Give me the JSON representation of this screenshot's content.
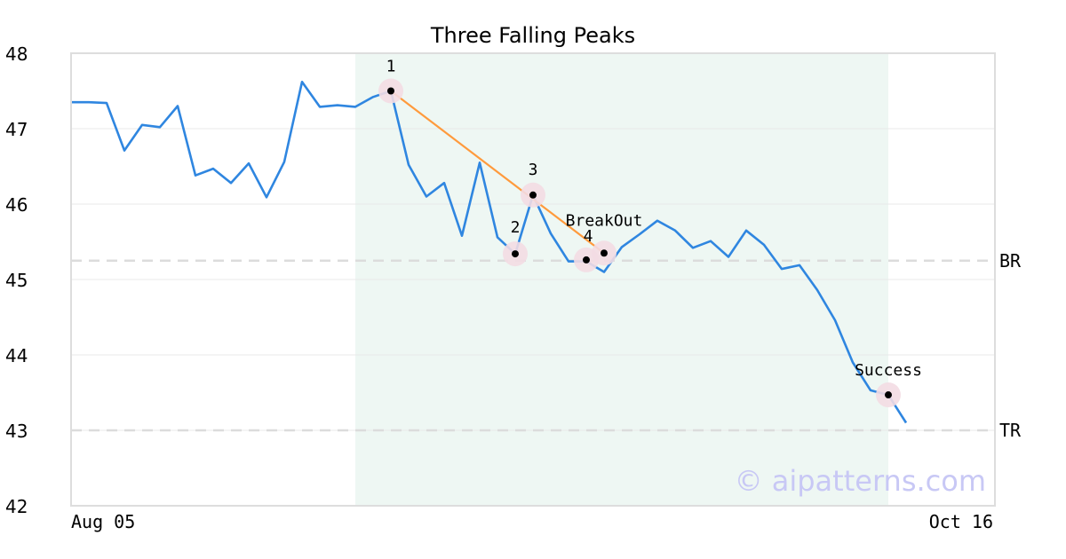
{
  "chart_data": {
    "type": "line",
    "title": "Three Falling Peaks",
    "xlabel": "",
    "ylabel": "",
    "x_tick_labels": [
      "Aug 05",
      "Oct 16"
    ],
    "y_ticks": [
      42,
      43,
      44,
      45,
      46,
      47,
      48
    ],
    "ylim": [
      42,
      48
    ],
    "grid": "horizontal",
    "series": [
      {
        "color": "#2f86e0",
        "values": [
          47.35,
          47.35,
          47.34,
          46.71,
          47.05,
          47.02,
          47.3,
          46.38,
          46.47,
          46.28,
          46.54,
          46.09,
          46.56,
          47.62,
          47.29,
          47.31,
          47.29,
          47.42,
          47.5,
          46.52,
          46.1,
          46.28,
          45.58,
          46.55,
          45.56,
          45.34,
          46.12,
          45.61,
          45.24,
          45.24,
          45.1,
          45.43,
          45.6,
          45.78,
          45.65,
          45.42,
          45.51,
          45.3,
          45.65,
          45.46,
          45.14,
          45.19,
          44.86,
          44.46,
          43.9,
          43.53,
          43.47,
          43.1
        ]
      }
    ],
    "highlight_region": {
      "from_index": 16,
      "to_index": 46,
      "color": "#eef7f3"
    },
    "trendline": {
      "color": "#ff9a3c",
      "from": {
        "index": 18,
        "value": 47.5
      },
      "to": {
        "index": 30,
        "value": 45.35
      }
    },
    "reference_lines": [
      {
        "label": "BR",
        "value": 45.25
      },
      {
        "label": "TR",
        "value": 43.0
      }
    ],
    "markers": [
      {
        "label": "1",
        "index": 18,
        "value": 47.5
      },
      {
        "label": "2",
        "index": 25,
        "value": 45.34
      },
      {
        "label": "3",
        "index": 26,
        "value": 46.12
      },
      {
        "label": "4",
        "index": 29,
        "value": 45.26
      },
      {
        "label": "BreakOut",
        "index": 30,
        "value": 45.35
      },
      {
        "label": "Success",
        "index": 46,
        "value": 43.47
      }
    ],
    "watermark": "© aipatterns.com"
  }
}
